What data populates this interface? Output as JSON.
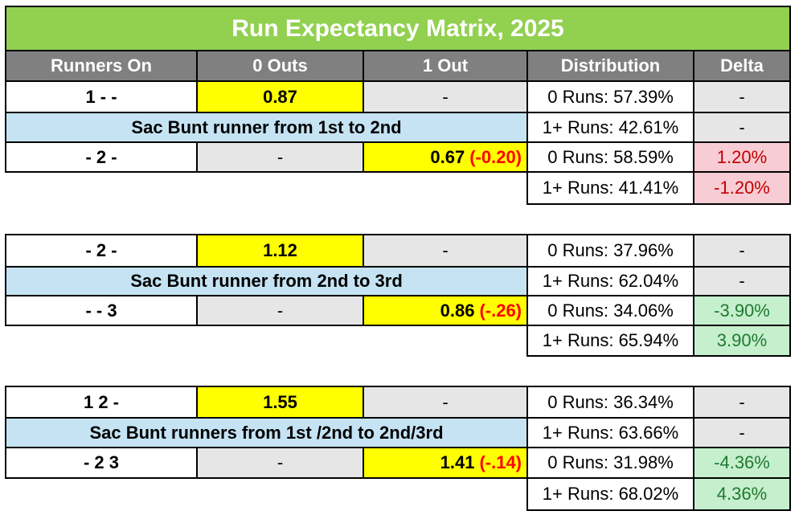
{
  "title": "Run Expectancy Matrix, 2025",
  "headers": [
    "Runners On",
    "0 Outs",
    "1 Out",
    "Distribution",
    "Delta"
  ],
  "blocks": [
    {
      "row1": {
        "runners": "1 - -",
        "outs0": "0.87",
        "outs1": "-"
      },
      "sac": "Sac Bunt runner from 1st to 2nd",
      "row3": {
        "runners": "- 2 -",
        "outs0": "-",
        "outs1_value": "0.67",
        "outs1_delta": "(-0.20)"
      },
      "dist": [
        "0 Runs: 57.39%",
        "1+ Runs: 42.61%",
        "0 Runs: 58.59%",
        "1+ Runs: 41.41%"
      ],
      "delta": [
        "-",
        "-",
        "1.20%",
        "-1.20%"
      ]
    },
    {
      "row1": {
        "runners": "- 2 -",
        "outs0": "1.12",
        "outs1": "-"
      },
      "sac": "Sac Bunt runner from 2nd to 3rd",
      "row3": {
        "runners": "- - 3",
        "outs0": "-",
        "outs1_value": "0.86",
        "outs1_delta": "(-.26)"
      },
      "dist": [
        "0 Runs: 37.96%",
        "1+ Runs: 62.04%",
        "0 Runs: 34.06%",
        "1+ Runs: 65.94%"
      ],
      "delta": [
        "-",
        "-",
        "-3.90%",
        "3.90%"
      ]
    },
    {
      "row1": {
        "runners": "1 2 -",
        "outs0": "1.55",
        "outs1": "-"
      },
      "sac": "Sac Bunt runners from 1st /2nd to 2nd/3rd",
      "row3": {
        "runners": "- 2 3",
        "outs0": "-",
        "outs1_value": "1.41",
        "outs1_delta": "(-.14)"
      },
      "dist": [
        "0 Runs: 36.34%",
        "1+ Runs: 63.66%",
        "0 Runs: 31.98%",
        "1+ Runs: 68.02%"
      ],
      "delta": [
        "-",
        "-",
        "-4.36%",
        "4.36%"
      ]
    }
  ],
  "colors": {
    "title_bg": "#92d050",
    "header_bg": "#808080",
    "highlight": "#ffff00",
    "sac_bg": "#c5e3f3",
    "neutral": "#e6e6e6",
    "bad_bg": "#f8ccd4",
    "good_bg": "#c6efce"
  }
}
